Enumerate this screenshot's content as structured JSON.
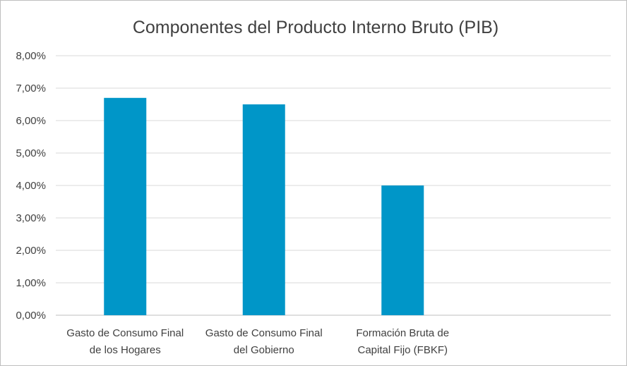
{
  "chart_data": {
    "type": "bar",
    "title": "Componentes del Producto Interno Bruto (PIB)",
    "categories": [
      [
        "Gasto de Consumo Final",
        "de los Hogares"
      ],
      [
        "Gasto de Consumo Final",
        "del Gobierno"
      ],
      [
        "Formación Bruta de",
        "Capital Fijo (FBKF)"
      ],
      []
    ],
    "values": [
      6.7,
      6.5,
      4.0,
      null
    ],
    "ylim": [
      0,
      8
    ],
    "ytick_step": 1,
    "ytick_labels": [
      "0,00%",
      "1,00%",
      "2,00%",
      "3,00%",
      "4,00%",
      "5,00%",
      "6,00%",
      "7,00%",
      "8,00%"
    ],
    "xlabel": "",
    "ylabel": "",
    "grid": true,
    "legend": "none",
    "bar_color": "#0096c8"
  }
}
